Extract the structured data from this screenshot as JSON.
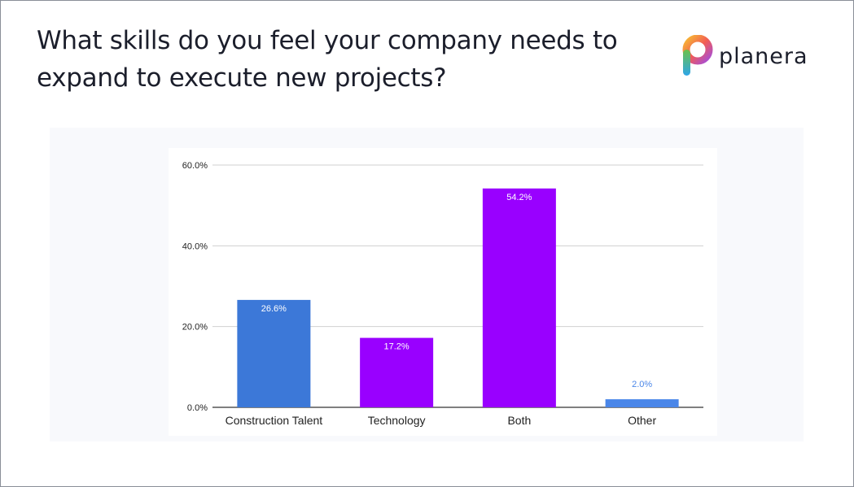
{
  "slide": {
    "title": "What skills do you feel your company needs to expand to execute new projects?",
    "logo_text": "planera",
    "logo_icon": "planera-logo-icon"
  },
  "chart_data": {
    "type": "bar",
    "categories": [
      "Construction Talent",
      "Technology",
      "Both",
      "Other"
    ],
    "values": [
      26.6,
      17.2,
      54.2,
      2.0
    ],
    "data_labels": [
      "26.6%",
      "17.2%",
      "54.2%",
      "2.0%"
    ],
    "bar_colors": [
      "#3c78d8",
      "#9900ff",
      "#9900ff",
      "#4a86e8"
    ],
    "label_colors": [
      "#ffffff",
      "#ffffff",
      "#ffffff",
      "#4a86e8"
    ],
    "yticks": [
      0,
      20,
      40,
      60
    ],
    "ytick_labels": [
      "0.0%",
      "20.0%",
      "40.0%",
      "60.0%"
    ],
    "ylim": [
      0,
      60
    ],
    "grid": true,
    "legend": "none",
    "title": "",
    "xlabel": "",
    "ylabel": ""
  }
}
